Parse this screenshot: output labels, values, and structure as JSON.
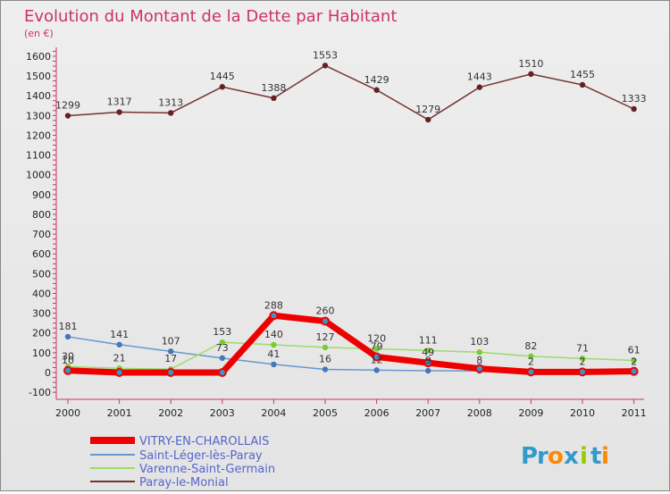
{
  "title": "Evolution du Montant de la Dette par Habitant",
  "subtitle": "(en €)",
  "brand": [
    "P",
    "r",
    "o",
    "x",
    "i",
    "t",
    "i"
  ],
  "brand_colors": [
    "#3399cc",
    "#3399cc",
    "#ff8800",
    "#3399cc",
    "#99cc00",
    "#3399cc",
    "#ff8800"
  ],
  "chart_data": {
    "type": "line",
    "title": "Evolution du Montant de la Dette par Habitant",
    "subtitle": "(en €)",
    "x": [
      "2000",
      "2001",
      "2002",
      "2003",
      "2004",
      "2005",
      "2006",
      "2007",
      "2008",
      "2009",
      "2010",
      "2011"
    ],
    "yticks": [
      "-100",
      "0",
      "100",
      "200",
      "300",
      "400",
      "500",
      "600",
      "700",
      "800",
      "900",
      "1000",
      "1100",
      "1200",
      "1300",
      "1400",
      "1500",
      "1600"
    ],
    "ylim": [
      -100,
      1650
    ],
    "grid": false,
    "legend_position": "bottom-left",
    "series": [
      {
        "name": "VITRY-EN-CHAROLLAIS",
        "color": "#ee0000",
        "width": 7,
        "point_color": "#3399cc",
        "values": [
          10,
          0,
          0,
          0,
          288,
          260,
          79,
          49,
          20,
          3,
          3,
          6
        ],
        "labels": [
          "10",
          "",
          "",
          "",
          "288",
          "260",
          "79",
          "49",
          "",
          "",
          "",
          ""
        ]
      },
      {
        "name": "Saint-Léger-lès-Paray",
        "color": "#6699cc",
        "width": 1.5,
        "point_color": "#4477bb",
        "values": [
          181,
          141,
          107,
          73,
          41,
          16,
          12,
          9,
          8,
          2,
          2,
          2
        ],
        "labels": [
          "181",
          "141",
          "107",
          "73",
          "41",
          "16",
          "12",
          "9",
          "8",
          "2",
          "2",
          "2"
        ]
      },
      {
        "name": "Varenne-Saint-Germain",
        "color": "#99dd66",
        "width": 1.5,
        "point_color": "#77cc33",
        "values": [
          30,
          21,
          17,
          153,
          140,
          127,
          120,
          111,
          103,
          82,
          71,
          61
        ],
        "labels": [
          "30",
          "21",
          "17",
          "153",
          "140",
          "127",
          "120",
          "111",
          "103",
          "82",
          "71",
          "61"
        ]
      },
      {
        "name": "Paray-le-Monial",
        "color": "#773333",
        "width": 1.5,
        "point_color": "#662222",
        "values": [
          1299,
          1317,
          1313,
          1445,
          1388,
          1553,
          1429,
          1279,
          1443,
          1510,
          1455,
          1333
        ],
        "labels": [
          "1299",
          "1317",
          "1313",
          "1445",
          "1388",
          "1553",
          "1429",
          "1279",
          "1443",
          "1510",
          "1455",
          "1333"
        ]
      }
    ]
  }
}
